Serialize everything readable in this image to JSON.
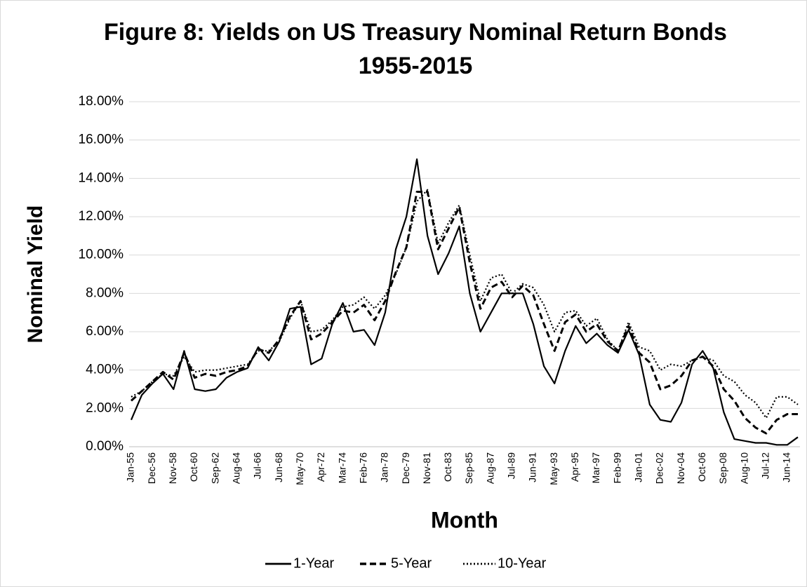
{
  "chart_data": {
    "type": "line",
    "title": [
      "Figure 8: Yields on US Treasury Nominal Return Bonds",
      "1955-2015"
    ],
    "x_label": "Month",
    "y_label": "Nominal Yield",
    "categories": [
      "Jan-55",
      null,
      "Dec-56",
      null,
      "Nov-58",
      null,
      "Oct-60",
      null,
      "Sep-62",
      null,
      "Aug-64",
      null,
      "Jul-66",
      null,
      "Jun-68",
      null,
      "May-70",
      null,
      "Apr-72",
      null,
      "Mar-74",
      null,
      "Feb-76",
      null,
      "Jan-78",
      null,
      "Dec-79",
      null,
      "Nov-81",
      null,
      "Oct-83",
      null,
      "Sep-85",
      null,
      "Aug-87",
      null,
      "Jul-89",
      null,
      "Jun-91",
      null,
      "May-93",
      null,
      "Apr-95",
      null,
      "Mar-97",
      null,
      "Feb-99",
      null,
      "Jan-01",
      null,
      "Dec-02",
      null,
      "Nov-04",
      null,
      "Oct-06",
      null,
      "Sep-08",
      null,
      "Aug-10",
      null,
      "Jul-12",
      null,
      "Jun-14",
      null
    ],
    "series": [
      {
        "name": "1-Year",
        "color": "#000000",
        "dash": "solid",
        "values": [
          1.4,
          2.7,
          3.3,
          3.8,
          3.0,
          5.0,
          3.0,
          2.9,
          3.0,
          3.6,
          3.9,
          4.1,
          5.2,
          4.5,
          5.5,
          7.2,
          7.3,
          4.3,
          4.6,
          6.4,
          7.5,
          6.0,
          6.1,
          5.3,
          7.0,
          10.3,
          12.0,
          15.0,
          11.0,
          9.0,
          10.1,
          11.5,
          8.0,
          6.0,
          7.0,
          8.0,
          8.0,
          8.0,
          6.4,
          4.2,
          3.3,
          5.0,
          6.3,
          5.4,
          5.9,
          5.3,
          4.9,
          6.1,
          4.8,
          2.2,
          1.4,
          1.3,
          2.3,
          4.3,
          5.0,
          4.1,
          1.8,
          0.4,
          0.3,
          0.2,
          0.2,
          0.1,
          0.1,
          0.5
        ]
      },
      {
        "name": "5-Year",
        "color": "#000000",
        "dash": "dashed",
        "values": [
          2.4,
          2.9,
          3.4,
          3.9,
          3.5,
          4.9,
          3.6,
          3.8,
          3.7,
          3.9,
          4.0,
          4.2,
          5.1,
          4.9,
          5.6,
          6.8,
          7.6,
          5.6,
          5.9,
          6.5,
          7.1,
          7.0,
          7.4,
          6.6,
          7.6,
          9.1,
          10.4,
          13.3,
          13.3,
          10.3,
          11.4,
          12.5,
          9.6,
          7.2,
          8.3,
          8.6,
          7.8,
          8.4,
          7.9,
          6.4,
          5.0,
          6.5,
          6.9,
          6.0,
          6.4,
          5.5,
          5.0,
          6.3,
          4.9,
          4.4,
          3.0,
          3.2,
          3.7,
          4.5,
          4.7,
          4.2,
          3.0,
          2.4,
          1.5,
          1.0,
          0.7,
          1.4,
          1.7,
          1.7
        ]
      },
      {
        "name": "10-Year",
        "color": "#000000",
        "dash": "dotted",
        "values": [
          2.6,
          2.9,
          3.4,
          3.8,
          3.7,
          4.7,
          3.9,
          4.0,
          4.0,
          4.1,
          4.2,
          4.3,
          5.0,
          5.0,
          5.5,
          6.7,
          7.6,
          6.0,
          6.1,
          6.6,
          7.3,
          7.4,
          7.8,
          7.2,
          7.9,
          9.0,
          10.4,
          12.8,
          13.4,
          10.6,
          11.7,
          12.6,
          10.0,
          7.6,
          8.8,
          9.0,
          8.0,
          8.5,
          8.3,
          7.4,
          6.0,
          7.0,
          7.1,
          6.3,
          6.7,
          5.6,
          5.0,
          6.5,
          5.2,
          5.0,
          4.0,
          4.3,
          4.2,
          4.5,
          4.7,
          4.5,
          3.7,
          3.4,
          2.7,
          2.3,
          1.5,
          2.6,
          2.6,
          2.2
        ]
      }
    ],
    "ylim": [
      0,
      18
    ],
    "yticks": [
      {
        "value": 0,
        "label": "0.00%"
      },
      {
        "value": 2,
        "label": "2.00%"
      },
      {
        "value": 4,
        "label": "4.00%"
      },
      {
        "value": 6,
        "label": "6.00%"
      },
      {
        "value": 8,
        "label": "8.00%"
      },
      {
        "value": 10,
        "label": "10.00%"
      },
      {
        "value": 12,
        "label": "12.00%"
      },
      {
        "value": 14,
        "label": "14.00%"
      },
      {
        "value": 16,
        "label": "16.00%"
      },
      {
        "value": 18,
        "label": "18.00%"
      }
    ],
    "grid": true,
    "legend": "bottom"
  }
}
